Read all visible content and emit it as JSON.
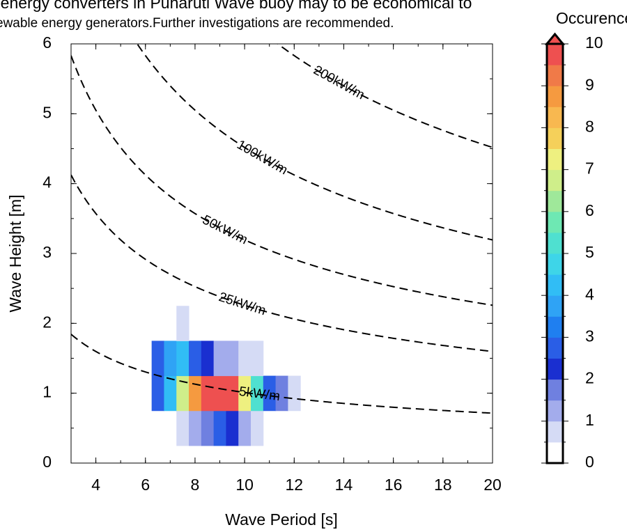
{
  "title_lines": [
    "ve energy converters in Puharuti Wave buoy may to be economical to",
    "ewable energy generators.Further investigations are recommended."
  ],
  "chart_data": {
    "type": "heatmap",
    "x_label": "Wave Period [s]",
    "y_label": "Wave Height [m]",
    "xlim": [
      3,
      20
    ],
    "xticks": [
      4,
      6,
      8,
      10,
      12,
      14,
      16,
      18,
      20
    ],
    "ylim": [
      0,
      6
    ],
    "yticks": [
      0,
      1,
      2,
      3,
      4,
      5,
      6
    ],
    "x": [
      6.5,
      7,
      7.5,
      8,
      8.5,
      9,
      9.5,
      10,
      10.5,
      11,
      11.5,
      12
    ],
    "y": [
      0.5,
      1,
      1.5,
      2
    ],
    "z": [
      [
        null,
        null,
        0.7,
        1.2,
        1.7,
        2.8,
        2.2,
        1.2,
        0.7,
        null,
        null,
        null
      ],
      [
        2.8,
        4.2,
        6.8,
        8.8,
        9.8,
        9.8,
        9.8,
        7.2,
        5.0,
        2.8,
        1.8,
        0.7
      ],
      [
        2.8,
        3.8,
        4.2,
        2.8,
        2.2,
        1.2,
        1.2,
        0.7,
        0.7,
        null,
        null,
        null
      ],
      [
        null,
        null,
        0.7,
        null,
        null,
        null,
        null,
        null,
        null,
        null,
        null,
        null
      ]
    ],
    "contours": [
      {
        "level": 5,
        "label": "5kW/m"
      },
      {
        "level": 25,
        "label": "25kW/m"
      },
      {
        "level": 50,
        "label": "50kW/m"
      },
      {
        "level": 100,
        "label": "100kW/m"
      },
      {
        "level": 200,
        "label": "200kW/m"
      }
    ],
    "colorbar": {
      "label": "Occurence [%]",
      "lim": [
        0,
        10
      ],
      "ticks": [
        0,
        1,
        2,
        3,
        4,
        5,
        6,
        7,
        8,
        9,
        10
      ],
      "extend": "max",
      "colors": [
        "#ffffff",
        "#d5dbf5",
        "#a3acec",
        "#6f80e0",
        "#1a2fd0",
        "#2a5ee6",
        "#1f7ff0",
        "#2fa3f5",
        "#31bdf5",
        "#3ed5e8",
        "#4fe0d0",
        "#6ee8b3",
        "#9fe89a",
        "#cfee8a",
        "#eef080",
        "#f5d05a",
        "#f8b850",
        "#f59a40",
        "#f07a48",
        "#ee5050"
      ]
    }
  }
}
